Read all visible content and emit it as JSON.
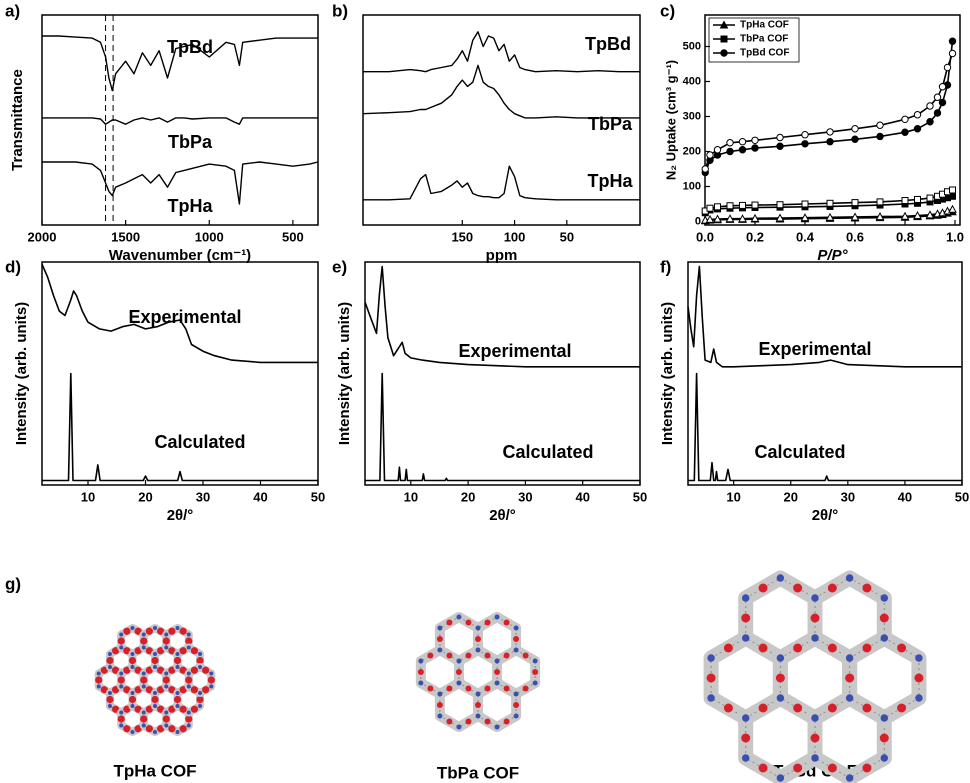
{
  "chart_data": [
    {
      "type": "line",
      "panel_label": "a)",
      "xlabel": "Wavenumber (cm⁻¹)",
      "ylabel": "Transmittance",
      "color": "#000000",
      "xlim": [
        2000,
        350
      ],
      "ylim": [
        0,
        10
      ],
      "xticks": [
        2000,
        1500,
        1000,
        500
      ],
      "vlines": [
        1620,
        1575
      ],
      "x": [
        2000,
        1900,
        1800,
        1700,
        1650,
        1620,
        1600,
        1580,
        1560,
        1500,
        1450,
        1400,
        1350,
        1300,
        1250,
        1200,
        1150,
        1100,
        1000,
        900,
        850,
        820,
        800,
        700,
        600,
        500,
        400,
        350
      ],
      "series": [
        {
          "name": "TpBd",
          "values": [
            9.0,
            9.0,
            8.95,
            8.9,
            8.7,
            8.0,
            7.0,
            6.4,
            7.2,
            7.8,
            7.2,
            8.2,
            7.6,
            8.3,
            7.0,
            8.4,
            8.5,
            8.6,
            8.0,
            8.7,
            8.6,
            7.6,
            8.7,
            8.8,
            8.9,
            8.9,
            8.9,
            8.9
          ]
        },
        {
          "name": "TbPa",
          "values": [
            5.1,
            5.1,
            5.1,
            5.1,
            5.05,
            4.8,
            4.9,
            5.0,
            5.0,
            4.8,
            5.0,
            5.1,
            5.0,
            5.1,
            4.9,
            5.1,
            5.1,
            5.05,
            5.1,
            5.1,
            4.9,
            4.8,
            5.1,
            5.1,
            5.1,
            5.1,
            5.1,
            5.1
          ]
        },
        {
          "name": "TpHa",
          "values": [
            3.0,
            3.0,
            3.0,
            2.9,
            2.6,
            2.0,
            1.6,
            1.4,
            1.8,
            2.0,
            2.2,
            2.4,
            2.0,
            2.4,
            1.8,
            2.5,
            2.6,
            2.7,
            2.9,
            2.8,
            2.6,
            1.0,
            2.9,
            3.0,
            2.9,
            2.8,
            2.9,
            3.0
          ]
        }
      ]
    },
    {
      "type": "line",
      "panel_label": "b)",
      "xlabel": "ppm",
      "color": "#000000",
      "xlim": [
        245,
        -20
      ],
      "ylim": [
        0,
        10
      ],
      "xticks": [
        150,
        100,
        50
      ],
      "x": [
        245,
        220,
        200,
        190,
        185,
        180,
        170,
        160,
        155,
        150,
        145,
        140,
        135,
        130,
        125,
        120,
        115,
        110,
        105,
        100,
        95,
        90,
        80,
        60,
        40,
        20,
        0,
        -20
      ],
      "series": [
        {
          "name": "TpBd",
          "values": [
            7.3,
            7.3,
            7.4,
            7.35,
            7.3,
            7.4,
            7.5,
            7.6,
            7.9,
            8.3,
            7.8,
            8.8,
            9.2,
            8.5,
            9.0,
            8.9,
            8.3,
            8.6,
            7.8,
            8.1,
            7.5,
            7.4,
            7.3,
            7.35,
            7.3,
            7.35,
            7.3,
            7.3
          ]
        },
        {
          "name": "TbPa",
          "values": [
            5.3,
            5.35,
            5.4,
            5.5,
            5.5,
            5.6,
            5.8,
            6.2,
            6.6,
            6.9,
            6.6,
            6.8,
            7.6,
            6.8,
            6.6,
            6.5,
            6.2,
            5.8,
            5.5,
            5.3,
            5.2,
            5.1,
            5.1,
            5.15,
            5.1,
            5.1,
            5.1,
            5.1
          ]
        },
        {
          "name": "TpHa",
          "values": [
            1.2,
            1.2,
            1.25,
            2.2,
            2.4,
            1.5,
            1.6,
            1.9,
            2.1,
            1.8,
            2.0,
            1.5,
            1.4,
            1.35,
            1.35,
            1.3,
            1.3,
            1.5,
            2.8,
            2.3,
            1.4,
            1.3,
            1.25,
            1.2,
            1.2,
            1.2,
            1.2,
            1.2
          ]
        }
      ]
    },
    {
      "type": "line",
      "panel_label": "c)",
      "xlabel": "P/P°",
      "ylabel": "N₂ Uptake (cm³ g⁻¹)",
      "color": "#000000",
      "legend": "upper left",
      "xlim": [
        0,
        1.02
      ],
      "ylim": [
        -10,
        590
      ],
      "xticks": [
        {
          "value": 0,
          "label": "0.0"
        },
        0.2,
        0.4,
        0.6,
        0.8,
        {
          "value": 1,
          "label": "1.0"
        }
      ],
      "yticks": [
        0,
        100,
        200,
        300,
        400,
        500
      ],
      "x": [
        0.001,
        0.02,
        0.05,
        0.1,
        0.15,
        0.2,
        0.3,
        0.4,
        0.5,
        0.6,
        0.7,
        0.8,
        0.85,
        0.9,
        0.93,
        0.95,
        0.97,
        0.99
      ],
      "series": [
        {
          "name": "TpHa COF",
          "marker": "triangle",
          "values": [
            2,
            4,
            5,
            6,
            6,
            7,
            7,
            8,
            9,
            10,
            11,
            12,
            14,
            16,
            18,
            20,
            24,
            28
          ],
          "desorption": [
            4,
            6,
            7,
            8,
            8,
            9,
            10,
            11,
            12,
            13,
            14,
            15,
            17,
            19,
            22,
            25,
            30,
            35
          ]
        },
        {
          "name": "TbPa COF",
          "marker": "square",
          "values": [
            25,
            33,
            36,
            38,
            39,
            40,
            41,
            42,
            43,
            45,
            47,
            50,
            52,
            56,
            60,
            64,
            68,
            72
          ],
          "desorption": [
            30,
            38,
            42,
            45,
            46,
            47,
            48,
            50,
            52,
            54,
            56,
            60,
            63,
            67,
            72,
            78,
            85,
            90
          ]
        },
        {
          "name": "TpBd COF",
          "marker": "circle",
          "values": [
            140,
            175,
            190,
            200,
            205,
            210,
            215,
            222,
            228,
            235,
            243,
            255,
            265,
            285,
            310,
            340,
            390,
            515
          ],
          "desorption": [
            150,
            190,
            205,
            225,
            228,
            232,
            240,
            248,
            256,
            265,
            275,
            292,
            305,
            330,
            355,
            385,
            440,
            480
          ]
        }
      ]
    },
    {
      "type": "line",
      "panel_label": "d)",
      "xlabel": "2θ/°",
      "ylabel": "Intensity (arb. units)",
      "color": "#000000",
      "xlim": [
        2,
        50
      ],
      "ylim": [
        0,
        10
      ],
      "xticks": [
        10,
        20,
        30,
        40,
        50
      ],
      "series": [
        {
          "name": "Experimental",
          "x": [
            2,
            3,
            4,
            5,
            6,
            7,
            7.5,
            8,
            9,
            10,
            12,
            14,
            16,
            18,
            20,
            22,
            24,
            26,
            27,
            28,
            30,
            32,
            35,
            40,
            45,
            50
          ],
          "values": [
            9.9,
            9.3,
            8.5,
            7.8,
            7.6,
            8.3,
            8.7,
            8.5,
            7.8,
            7.3,
            7.0,
            6.9,
            7.1,
            7.2,
            7.0,
            7.1,
            7.3,
            7.4,
            7.0,
            6.3,
            6.0,
            5.8,
            5.6,
            5.5,
            5.5,
            5.5
          ]
        },
        {
          "name": "Calculated",
          "x": [
            2,
            6.6,
            7,
            7.4,
            11.3,
            11.7,
            12.1,
            19.6,
            20,
            20.4,
            25.6,
            26,
            26.4,
            50
          ],
          "values": [
            0.2,
            0.2,
            5,
            0.2,
            0.2,
            0.9,
            0.2,
            0.2,
            0.4,
            0.2,
            0.2,
            0.6,
            0.2,
            0.2
          ]
        }
      ]
    },
    {
      "type": "line",
      "panel_label": "e)",
      "xlabel": "2θ/°",
      "ylabel": "Intensity (arb. units)",
      "color": "#000000",
      "xlim": [
        2,
        50
      ],
      "ylim": [
        0,
        10
      ],
      "xticks": [
        10,
        20,
        30,
        40,
        50
      ],
      "series": [
        {
          "name": "Experimental",
          "x": [
            2,
            3,
            4,
            4.5,
            5,
            5.5,
            6,
            7,
            8,
            8.5,
            9,
            10,
            12,
            15,
            20,
            25,
            30,
            35,
            40,
            45,
            50
          ],
          "values": [
            8.2,
            7.5,
            6.8,
            8.5,
            9.8,
            8.0,
            6.6,
            5.8,
            6.2,
            6.4,
            5.9,
            5.7,
            5.6,
            5.5,
            5.4,
            5.35,
            5.3,
            5.3,
            5.3,
            5.3,
            5.3
          ]
        },
        {
          "name": "Calculated",
          "x": [
            2,
            4.6,
            5,
            5.4,
            7.8,
            8,
            8.2,
            9,
            9.2,
            9.4,
            12,
            12.2,
            12.4,
            16,
            16.2,
            16.4,
            50
          ],
          "values": [
            0.2,
            0.2,
            5,
            0.2,
            0.2,
            0.8,
            0.2,
            0.2,
            0.7,
            0.2,
            0.2,
            0.5,
            0.2,
            0.2,
            0.3,
            0.2,
            0.2
          ]
        }
      ]
    },
    {
      "type": "line",
      "panel_label": "f)",
      "xlabel": "2θ/°",
      "ylabel": "Intensity (arb. units)",
      "color": "#000000",
      "xlim": [
        2,
        50
      ],
      "ylim": [
        0,
        10
      ],
      "xticks": [
        10,
        20,
        30,
        40,
        50
      ],
      "series": [
        {
          "name": "Experimental",
          "x": [
            2,
            2.5,
            3,
            3.5,
            4,
            4.5,
            5,
            6,
            6.5,
            7,
            8,
            10,
            15,
            20,
            25,
            27,
            30,
            35,
            40,
            45,
            50
          ],
          "values": [
            8.0,
            7.0,
            6.2,
            8.5,
            9.8,
            7.5,
            5.6,
            5.5,
            6.1,
            5.5,
            5.3,
            5.3,
            5.35,
            5.4,
            5.5,
            5.6,
            5.4,
            5.35,
            5.3,
            5.3,
            5.3
          ]
        },
        {
          "name": "Calculated",
          "x": [
            2,
            3.1,
            3.5,
            3.9,
            5.9,
            6.2,
            6.5,
            6.8,
            7,
            7.2,
            8.6,
            9,
            9.4,
            26,
            26.3,
            26.6,
            50
          ],
          "values": [
            0.2,
            0.2,
            5,
            0.2,
            0.2,
            1.0,
            0.2,
            0.2,
            0.6,
            0.2,
            0.2,
            0.7,
            0.2,
            0.2,
            0.4,
            0.2,
            0.2
          ]
        }
      ]
    }
  ],
  "structures": {
    "label": "g)",
    "names": [
      "TpHa COF",
      "TbPa COF",
      "TpBd COF"
    ]
  }
}
